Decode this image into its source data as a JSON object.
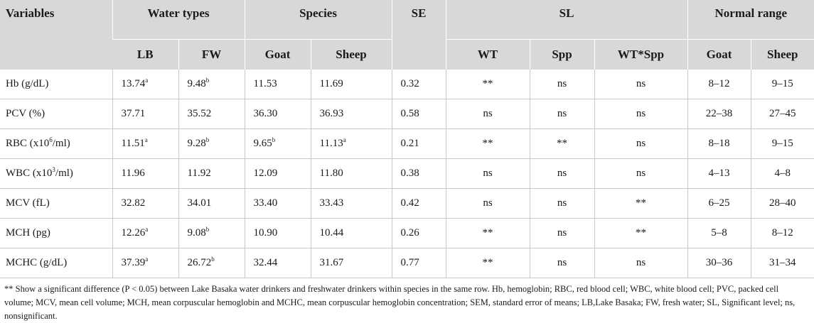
{
  "header": {
    "variables": "Variables",
    "water_types": "Water types",
    "species": "Species",
    "se": "SE",
    "sl": "SL",
    "normal_range": "Normal range",
    "lb": "LB",
    "fw": "FW",
    "goat": "Goat",
    "sheep": "Sheep",
    "wt": "WT",
    "spp": "Spp",
    "wt_spp": "WT*Spp",
    "nr_goat": "Goat",
    "nr_sheep": "Sheep"
  },
  "rows": [
    {
      "variable": "Hb (g/dL)",
      "variable_sup": "",
      "variable_suffix": "",
      "lb": "13.74",
      "lb_sup": "a",
      "fw": "9.48",
      "fw_sup": "b",
      "goat": "11.53",
      "goat_sup": "",
      "sheep": "11.69",
      "sheep_sup": "",
      "se": "0.32",
      "wt": "**",
      "spp": "ns",
      "wt_spp": "ns",
      "nr_goat": "8–12",
      "nr_sheep": "9–15"
    },
    {
      "variable": "PCV (%)",
      "variable_sup": "",
      "variable_suffix": "",
      "lb": "37.71",
      "lb_sup": "",
      "fw": "35.52",
      "fw_sup": "",
      "goat": "36.30",
      "goat_sup": "",
      "sheep": "36.93",
      "sheep_sup": "",
      "se": "0.58",
      "wt": "ns",
      "spp": "ns",
      "wt_spp": "ns",
      "nr_goat": "22–38",
      "nr_sheep": "27–45"
    },
    {
      "variable": "RBC (x10",
      "variable_sup": "6",
      "variable_suffix": "/ml)",
      "lb": "11.51",
      "lb_sup": "a",
      "fw": "9.28",
      "fw_sup": "b",
      "goat": "9.65",
      "goat_sup": "b",
      "sheep": "11.13",
      "sheep_sup": "a",
      "se": "0.21",
      "wt": "**",
      "spp": "**",
      "wt_spp": "ns",
      "nr_goat": "8–18",
      "nr_sheep": "9–15"
    },
    {
      "variable": "WBC (x10",
      "variable_sup": "3",
      "variable_suffix": "/ml)",
      "lb": "11.96",
      "lb_sup": "",
      "fw": "11.92",
      "fw_sup": "",
      "goat": "12.09",
      "goat_sup": "",
      "sheep": "11.80",
      "sheep_sup": "",
      "se": "0.38",
      "wt": "ns",
      "spp": "ns",
      "wt_spp": "ns",
      "nr_goat": "4–13",
      "nr_sheep": "4–8"
    },
    {
      "variable": "MCV (fL)",
      "variable_sup": "",
      "variable_suffix": "",
      "lb": "32.82",
      "lb_sup": "",
      "fw": "34.01",
      "fw_sup": "",
      "goat": "33.40",
      "goat_sup": "",
      "sheep": "33.43",
      "sheep_sup": "",
      "se": "0.42",
      "wt": "ns",
      "spp": "ns",
      "wt_spp": "**",
      "nr_goat": "6–25",
      "nr_sheep": "28–40"
    },
    {
      "variable": "MCH (pg)",
      "variable_sup": "",
      "variable_suffix": "",
      "lb": "12.26",
      "lb_sup": "a",
      "fw": "9.08",
      "fw_sup": "b",
      "goat": "10.90",
      "goat_sup": "",
      "sheep": "10.44",
      "sheep_sup": "",
      "se": "0.26",
      "wt": "**",
      "spp": "ns",
      "wt_spp": "**",
      "nr_goat": "5–8",
      "nr_sheep": "8–12"
    },
    {
      "variable": "MCHC (g/dL)",
      "variable_sup": "",
      "variable_suffix": "",
      "lb": "37.39",
      "lb_sup": "a",
      "fw": "26.72",
      "fw_sup": "b",
      "goat": "32.44",
      "goat_sup": "",
      "sheep": "31.67",
      "sheep_sup": "",
      "se": "0.77",
      "wt": "**",
      "spp": "ns",
      "wt_spp": "ns",
      "nr_goat": "30–36",
      "nr_sheep": "31–34"
    }
  ],
  "footnote": "** Show a significant difference (P < 0.05) between Lake Basaka water drinkers and freshwater drinkers within species in the same row. Hb, hemoglobin; RBC, red blood cell; WBC, white blood cell; PVC, packed cell volume; MCV, mean cell volume; MCH, mean corpuscular hemoglobin and MCHC, mean corpuscular hemoglobin concentration; SEM, standard error of means; LB,Lake Basaka; FW, fresh water; SL, Significant level; ns, nonsignificant."
}
